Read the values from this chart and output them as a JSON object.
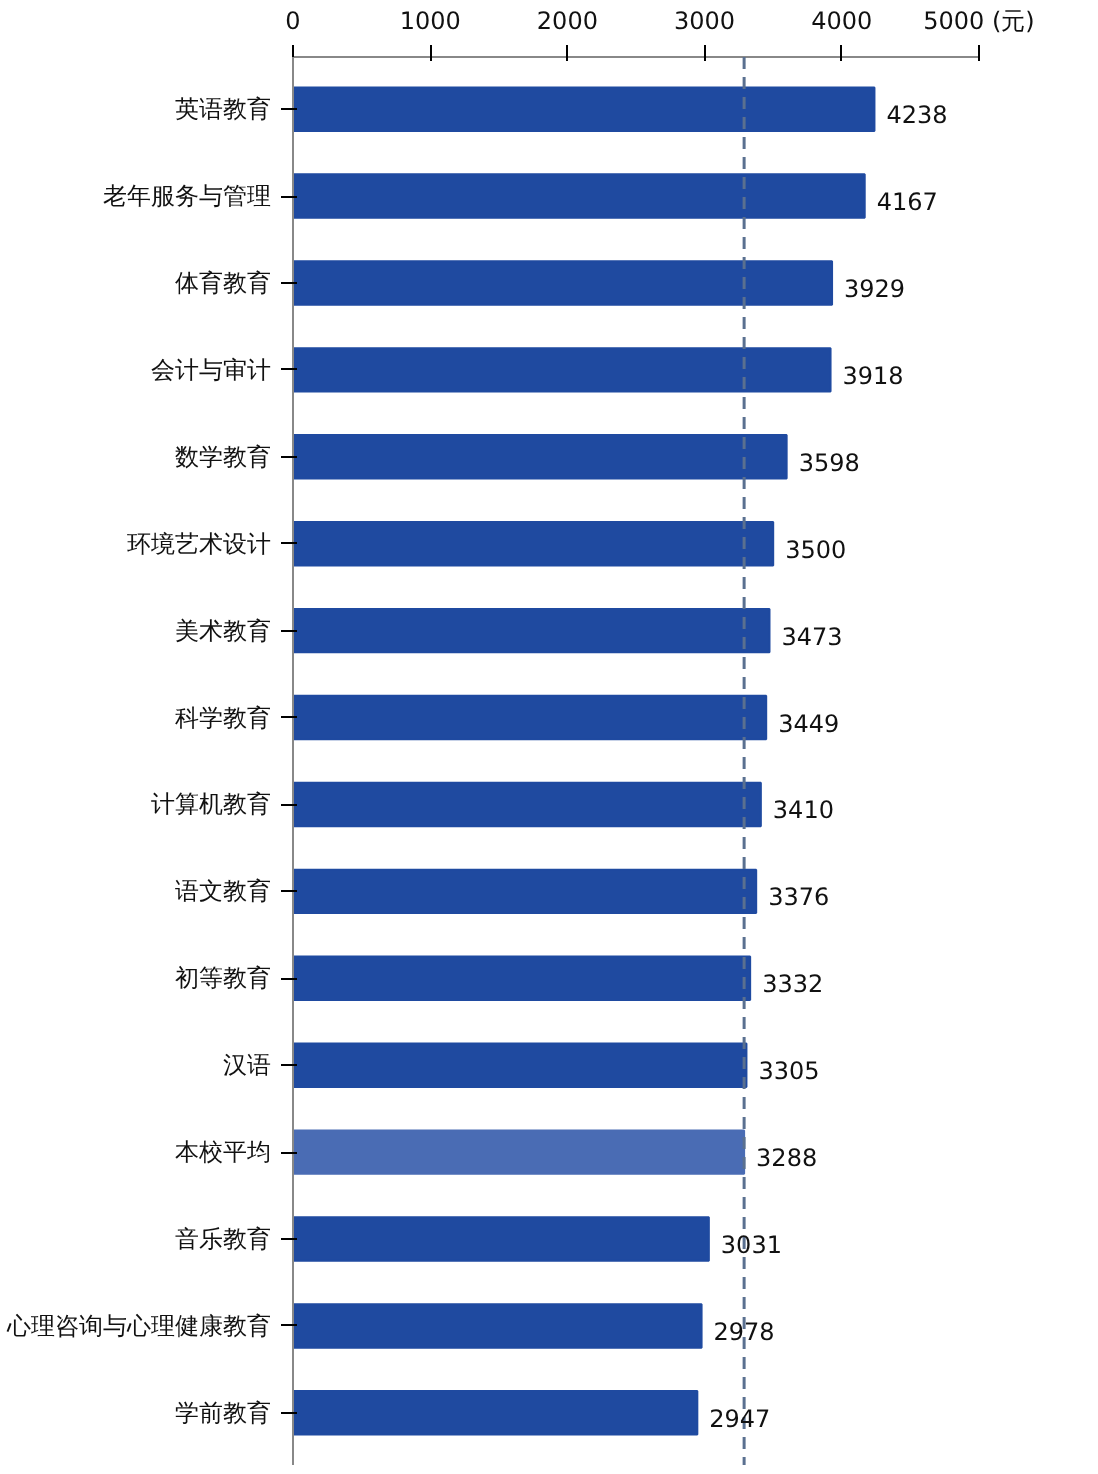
{
  "chart_data": {
    "type": "bar",
    "orientation": "horizontal",
    "categories": [
      "英语教育",
      "老年服务与管理",
      "体育教育",
      "会计与审计",
      "数学教育",
      "环境艺术设计",
      "美术教育",
      "科学教育",
      "计算机教育",
      "语文教育",
      "初等教育",
      "汉语",
      "本校平均",
      "音乐教育",
      "心理咨询与心理健康教育",
      "学前教育"
    ],
    "values": [
      4238,
      4167,
      3929,
      3918,
      3598,
      3500,
      3473,
      3449,
      3410,
      3376,
      3332,
      3305,
      3288,
      3031,
      2978,
      2947
    ],
    "colors": [
      "#1f4aa0",
      "#1f4aa0",
      "#1f4aa0",
      "#1f4aa0",
      "#1f4aa0",
      "#1f4aa0",
      "#1f4aa0",
      "#1f4aa0",
      "#1f4aa0",
      "#1f4aa0",
      "#1f4aa0",
      "#1f4aa0",
      "#4a6cb4",
      "#1f4aa0",
      "#1f4aa0",
      "#1f4aa0"
    ],
    "xlim": [
      0,
      5000
    ],
    "xticks": [
      0,
      1000,
      2000,
      3000,
      4000,
      {
        "value": 5000,
        "label": "5000 (元)"
      }
    ],
    "ref_lines": [
      {
        "axis": "x",
        "value": 3288,
        "color": "#5a7090",
        "line_style": "dashed"
      }
    ],
    "data_labels": true,
    "grid": false
  }
}
